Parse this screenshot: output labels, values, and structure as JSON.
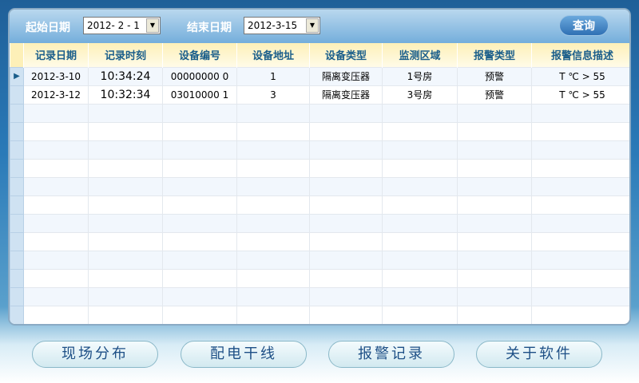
{
  "toolbar": {
    "start_label": "起始日期",
    "start_value": "2012- 2 - 1",
    "end_label": "结束日期",
    "end_value": "2012-3-15",
    "query_label": "查询"
  },
  "table": {
    "columns": [
      "记录日期",
      "记录时刻",
      "设备编号",
      "设备地址",
      "设备类型",
      "监测区域",
      "报警类型",
      "报警信息描述"
    ],
    "rows": [
      [
        "2012-3-10",
        "10:34:24",
        "00000000 0",
        "1",
        "隔离变压器",
        "1号房",
        "预警",
        "T ℃ > 55"
      ],
      [
        "2012-3-12",
        "10:32:34",
        "03010000 1",
        "3",
        "隔离变压器",
        "3号房",
        "预警",
        "T ℃ > 55"
      ]
    ],
    "current_row_marker": "▶"
  },
  "nav": [
    "现场分布",
    "配电干线",
    "报警记录",
    "关于软件"
  ]
}
